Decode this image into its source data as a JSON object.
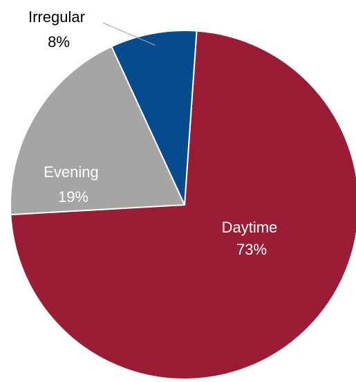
{
  "chart_data": {
    "type": "pie",
    "title": "",
    "slices": [
      {
        "label": "Daytime",
        "value": 73,
        "value_label": "73%",
        "color": "#9b1c35",
        "label_color": "#ffffff"
      },
      {
        "label": "Evening",
        "value": 19,
        "value_label": "19%",
        "color": "#a7a5a4",
        "label_color": "#ffffff"
      },
      {
        "label": "Irregular",
        "value": 8,
        "value_label": "8%",
        "color": "#074b8f",
        "label_color": "#000000"
      }
    ],
    "start_angle_deg": 4,
    "direction": "clockwise",
    "legend": "none"
  }
}
